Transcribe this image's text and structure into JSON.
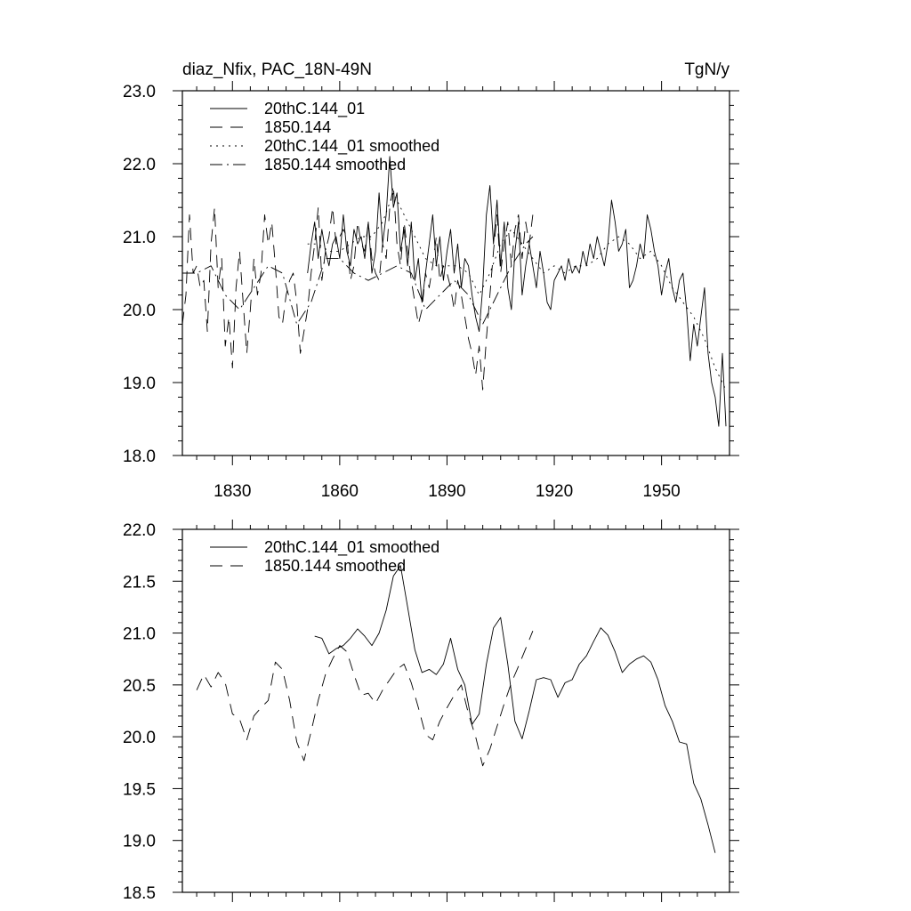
{
  "header": {
    "title_left": "diaz_Nfix, PAC_18N-49N",
    "title_right": "TgN/y"
  },
  "colors": {
    "line": "#000000",
    "background": "#ffffff"
  },
  "chart_data": [
    {
      "type": "line",
      "xlim": [
        1816,
        1969
      ],
      "ylim": [
        18.0,
        23.0
      ],
      "x_ticks": [
        1830,
        1860,
        1890,
        1920,
        1950
      ],
      "x_tick_labels": [
        "1830",
        "1860",
        "1890",
        "1920",
        "1950"
      ],
      "y_ticks": [
        18.0,
        19.0,
        20.0,
        21.0,
        22.0,
        23.0
      ],
      "y_tick_labels": [
        "18.0",
        "19.0",
        "20.0",
        "21.0",
        "22.0",
        "23.0"
      ],
      "legend_placement": "top-left",
      "series": [
        {
          "name": "20thC.144_01",
          "style": "solid",
          "x": [
            1851,
            1852,
            1853,
            1854,
            1855,
            1856,
            1857,
            1858,
            1859,
            1860,
            1861,
            1862,
            1863,
            1864,
            1865,
            1866,
            1867,
            1868,
            1869,
            1870,
            1871,
            1872,
            1873,
            1874,
            1875,
            1876,
            1877,
            1878,
            1879,
            1880,
            1881,
            1882,
            1883,
            1884,
            1885,
            1886,
            1887,
            1888,
            1889,
            1890,
            1891,
            1892,
            1893,
            1894,
            1895,
            1896,
            1897,
            1898,
            1899,
            1900,
            1901,
            1902,
            1903,
            1904,
            1905,
            1906,
            1907,
            1908,
            1909,
            1910,
            1911,
            1912,
            1913,
            1914,
            1915,
            1916,
            1917,
            1918,
            1919,
            1920,
            1921,
            1922,
            1923,
            1924,
            1925,
            1926,
            1927,
            1928,
            1929,
            1930,
            1931,
            1932,
            1933,
            1934,
            1935,
            1936,
            1937,
            1938,
            1939,
            1940,
            1941,
            1942,
            1943,
            1944,
            1945,
            1946,
            1947,
            1948,
            1949,
            1950,
            1951,
            1952,
            1953,
            1954,
            1955,
            1956,
            1957,
            1958,
            1959,
            1960,
            1961,
            1962,
            1963,
            1964,
            1965,
            1966,
            1967,
            1968
          ],
          "values": [
            20.5,
            20.9,
            21.2,
            20.7,
            21.1,
            20.8,
            20.6,
            20.9,
            21.0,
            20.7,
            21.3,
            20.8,
            20.6,
            21.1,
            20.9,
            21.0,
            20.7,
            21.2,
            20.5,
            20.8,
            21.6,
            20.9,
            21.3,
            22.1,
            21.4,
            21.6,
            20.8,
            21.1,
            20.6,
            21.2,
            20.4,
            20.7,
            20.1,
            20.5,
            20.9,
            21.3,
            20.6,
            21.0,
            20.4,
            20.8,
            21.1,
            20.5,
            20.9,
            20.3,
            20.7,
            20.6,
            20.2,
            19.9,
            19.7,
            20.3,
            21.3,
            21.7,
            20.9,
            21.5,
            20.6,
            21.2,
            20.3,
            20.0,
            20.8,
            21.2,
            20.2,
            20.6,
            20.9,
            20.6,
            20.3,
            20.8,
            20.5,
            20.1,
            20.0,
            20.4,
            20.5,
            20.6,
            20.4,
            20.7,
            20.5,
            20.6,
            20.5,
            20.8,
            20.6,
            20.9,
            20.7,
            21.0,
            20.8,
            20.6,
            20.9,
            21.5,
            21.2,
            20.8,
            20.9,
            21.1,
            20.3,
            20.4,
            20.6,
            20.9,
            20.7,
            21.3,
            21.1,
            20.8,
            20.6,
            20.2,
            20.5,
            20.7,
            20.3,
            20.1,
            20.4,
            20.5,
            20.0,
            19.3,
            19.8,
            19.5,
            19.9,
            20.3,
            19.4,
            19.0,
            18.8,
            18.4,
            19.4,
            18.4
          ]
        },
        {
          "name": "1850.144",
          "style": "dashed",
          "x": [
            1816,
            1817,
            1818,
            1819,
            1820,
            1821,
            1822,
            1823,
            1824,
            1825,
            1826,
            1827,
            1828,
            1829,
            1830,
            1831,
            1832,
            1833,
            1834,
            1835,
            1836,
            1837,
            1838,
            1839,
            1840,
            1841,
            1842,
            1843,
            1844,
            1845,
            1846,
            1847,
            1848,
            1849,
            1850,
            1851,
            1852,
            1853,
            1854,
            1855,
            1856,
            1857,
            1858,
            1859,
            1860,
            1861,
            1862,
            1863,
            1864,
            1865,
            1866,
            1867,
            1868,
            1869,
            1870,
            1871,
            1872,
            1873,
            1874,
            1875,
            1876,
            1877,
            1878,
            1879,
            1880,
            1881,
            1882,
            1883,
            1884,
            1885,
            1886,
            1887,
            1888,
            1889,
            1890,
            1891,
            1892,
            1893,
            1894,
            1895,
            1896,
            1897,
            1898,
            1899,
            1900,
            1901,
            1902,
            1903,
            1904,
            1905,
            1906,
            1907,
            1908,
            1909,
            1910,
            1911,
            1912,
            1913,
            1914
          ],
          "values": [
            19.8,
            20.2,
            21.3,
            20.5,
            20.6,
            20.3,
            20.4,
            19.7,
            20.9,
            21.4,
            20.3,
            20.7,
            19.5,
            19.9,
            19.2,
            20.3,
            20.8,
            20.1,
            19.4,
            20.0,
            20.7,
            20.2,
            20.5,
            21.3,
            20.9,
            21.2,
            20.6,
            19.9,
            19.8,
            20.2,
            20.4,
            20.5,
            20.1,
            19.4,
            19.7,
            20.0,
            20.5,
            20.9,
            21.4,
            20.4,
            20.8,
            21.0,
            21.4,
            20.9,
            21.0,
            21.1,
            21.0,
            20.4,
            20.6,
            21.2,
            20.9,
            20.8,
            21.2,
            20.7,
            20.5,
            20.4,
            20.9,
            20.7,
            21.4,
            21.7,
            20.9,
            20.6,
            21.2,
            20.8,
            20.4,
            20.1,
            19.8,
            20.0,
            20.5,
            20.3,
            20.6,
            21.0,
            20.4,
            20.6,
            20.5,
            20.3,
            20.0,
            20.4,
            20.2,
            19.9,
            19.6,
            19.4,
            19.1,
            19.5,
            18.9,
            19.6,
            20.2,
            20.8,
            21.3,
            20.5,
            20.9,
            21.2,
            20.6,
            21.1,
            21.3,
            20.7,
            21.2,
            20.9,
            21.3
          ]
        },
        {
          "name": "20thC.144_01 smoothed",
          "style": "dotted",
          "x": [
            1851,
            1854,
            1857,
            1860,
            1863,
            1866,
            1869,
            1872,
            1875,
            1878,
            1881,
            1884,
            1887,
            1890,
            1893,
            1896,
            1899,
            1902,
            1905,
            1908,
            1911,
            1914,
            1917,
            1920,
            1923,
            1926,
            1929,
            1932,
            1935,
            1938,
            1941,
            1944,
            1947,
            1950,
            1953,
            1956,
            1959,
            1962,
            1965,
            1968
          ],
          "values": [
            20.9,
            20.9,
            20.8,
            20.8,
            20.9,
            21.0,
            21.0,
            21.2,
            21.6,
            21.3,
            21.0,
            20.7,
            20.6,
            20.6,
            20.6,
            20.5,
            20.2,
            20.5,
            20.9,
            21.1,
            20.9,
            20.7,
            20.5,
            20.6,
            20.5,
            20.6,
            20.6,
            20.7,
            20.9,
            21.0,
            20.9,
            20.7,
            20.8,
            20.6,
            20.3,
            20.1,
            19.9,
            19.6,
            19.2,
            18.9
          ]
        },
        {
          "name": "1850.144 smoothed",
          "style": "dashdot",
          "x": [
            1816,
            1820,
            1824,
            1828,
            1832,
            1836,
            1840,
            1844,
            1848,
            1852,
            1856,
            1860,
            1864,
            1868,
            1872,
            1876,
            1880,
            1884,
            1888,
            1892,
            1896,
            1900,
            1904,
            1908,
            1912,
            1914
          ],
          "values": [
            20.5,
            20.5,
            20.6,
            20.2,
            20.0,
            20.3,
            20.6,
            20.5,
            19.8,
            20.1,
            20.7,
            20.7,
            20.5,
            20.4,
            20.5,
            20.6,
            20.5,
            20.0,
            20.2,
            20.4,
            20.2,
            19.8,
            20.2,
            20.6,
            20.9,
            21.0
          ]
        }
      ]
    },
    {
      "type": "line",
      "xlim": [
        1816,
        1969
      ],
      "ylim": [
        18.5,
        22.0
      ],
      "x_ticks": [
        1830,
        1860,
        1890,
        1920,
        1950
      ],
      "y_ticks": [
        18.5,
        19.0,
        19.5,
        20.0,
        20.5,
        21.0,
        21.5,
        22.0
      ],
      "y_tick_labels": [
        "18.5",
        "19.0",
        "19.5",
        "20.0",
        "20.5",
        "21.0",
        "21.5",
        "22.0"
      ],
      "legend_placement": "top-left",
      "series": [
        {
          "name": "20thC.144_01 smoothed",
          "style": "solid",
          "x": [
            1853,
            1855,
            1857,
            1859,
            1861,
            1863,
            1865,
            1867,
            1869,
            1871,
            1873,
            1875,
            1877,
            1879,
            1881,
            1883,
            1885,
            1887,
            1889,
            1891,
            1893,
            1895,
            1897,
            1899,
            1901,
            1903,
            1905,
            1907,
            1909,
            1911,
            1913,
            1915,
            1917,
            1919,
            1921,
            1923,
            1925,
            1927,
            1929,
            1931,
            1933,
            1935,
            1937,
            1939,
            1941,
            1943,
            1945,
            1947,
            1949,
            1951,
            1953,
            1955,
            1957,
            1959,
            1961,
            1963,
            1965
          ],
          "values": [
            20.97,
            20.95,
            20.8,
            20.85,
            20.88,
            20.95,
            21.04,
            20.97,
            20.88,
            21.0,
            21.22,
            21.55,
            21.65,
            21.25,
            20.84,
            20.62,
            20.65,
            20.6,
            20.7,
            20.95,
            20.65,
            20.5,
            20.12,
            20.22,
            20.7,
            21.05,
            21.15,
            20.7,
            20.15,
            19.98,
            20.25,
            20.55,
            20.57,
            20.55,
            20.38,
            20.52,
            20.55,
            20.7,
            20.78,
            20.92,
            21.05,
            20.98,
            20.82,
            20.62,
            20.7,
            20.75,
            20.78,
            20.72,
            20.55,
            20.3,
            20.15,
            19.95,
            19.93,
            19.55,
            19.4,
            19.15,
            18.88
          ]
        },
        {
          "name": "1850.144 smoothed",
          "style": "dashed",
          "x": [
            1820,
            1822,
            1824,
            1826,
            1828,
            1830,
            1832,
            1834,
            1836,
            1838,
            1840,
            1842,
            1844,
            1846,
            1848,
            1850,
            1852,
            1854,
            1856,
            1858,
            1860,
            1862,
            1864,
            1866,
            1868,
            1870,
            1872,
            1874,
            1876,
            1878,
            1880,
            1882,
            1884,
            1886,
            1888,
            1890,
            1892,
            1894,
            1896,
            1898,
            1900,
            1902,
            1904,
            1906,
            1908,
            1910,
            1912,
            1914
          ],
          "values": [
            20.45,
            20.6,
            20.48,
            20.62,
            20.52,
            20.22,
            20.17,
            19.97,
            20.2,
            20.28,
            20.35,
            20.72,
            20.65,
            20.35,
            19.95,
            19.77,
            20.05,
            20.35,
            20.6,
            20.75,
            20.88,
            20.82,
            20.6,
            20.4,
            20.42,
            20.32,
            20.45,
            20.55,
            20.65,
            20.7,
            20.52,
            20.28,
            20.02,
            19.97,
            20.15,
            20.28,
            20.4,
            20.5,
            20.22,
            20.0,
            19.72,
            19.88,
            20.1,
            20.32,
            20.52,
            20.68,
            20.85,
            21.02
          ]
        }
      ]
    }
  ]
}
